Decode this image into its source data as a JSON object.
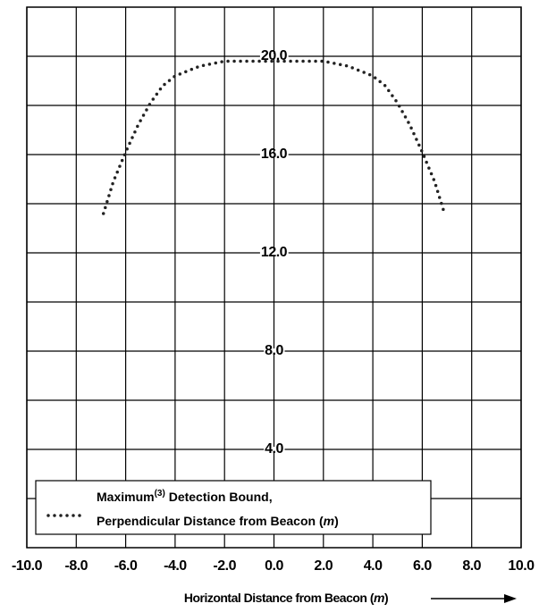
{
  "chart_data": {
    "type": "line",
    "xlabel": [
      "Horizontal Distance from Beacon (",
      "m",
      ")"
    ],
    "x": [
      -6.9,
      -6.5,
      -6,
      -5.5,
      -5,
      -4.5,
      -4,
      -3,
      -2,
      -1,
      0,
      1,
      2,
      3,
      4,
      4.5,
      5,
      5.5,
      6,
      6.5,
      6.9
    ],
    "series": [
      {
        "name": [
          "Maximum",
          "(3)",
          " Detection Bound,",
          "Perpendicular Distance from Beacon (",
          "m",
          ")"
        ],
        "color": "#222222",
        "values": [
          13.6,
          14.9,
          16.1,
          17.2,
          18.1,
          18.8,
          19.2,
          19.6,
          19.8,
          19.8,
          19.8,
          19.8,
          19.8,
          19.6,
          19.2,
          18.8,
          18.1,
          17.2,
          16.1,
          14.9,
          13.6
        ]
      }
    ],
    "xlim": [
      -10,
      10
    ],
    "xticks": [
      {
        "value": -10,
        "label": "-10.0"
      },
      {
        "value": -8,
        "label": "-8.0"
      },
      {
        "value": -6,
        "label": "-6.0"
      },
      {
        "value": -4,
        "label": "-4.0"
      },
      {
        "value": -2,
        "label": "-2.0"
      },
      {
        "value": 0,
        "label": "0.0"
      },
      {
        "value": 2,
        "label": "2.0"
      },
      {
        "value": 4,
        "label": "4.0"
      },
      {
        "value": 6,
        "label": "6.0"
      },
      {
        "value": 8,
        "label": "8.0"
      },
      {
        "value": 10,
        "label": "10.0"
      }
    ],
    "ylim": [
      0,
      22
    ],
    "yticks": [
      {
        "value": 4,
        "label": "4.0"
      },
      {
        "value": 8,
        "label": "8.0"
      },
      {
        "value": 12,
        "label": "12.0"
      },
      {
        "value": 16,
        "label": "16.0"
      },
      {
        "value": 20,
        "label": "20.0"
      }
    ],
    "yminor": [
      2,
      6,
      10,
      14,
      18
    ],
    "grid": true,
    "legend": "lower left"
  }
}
